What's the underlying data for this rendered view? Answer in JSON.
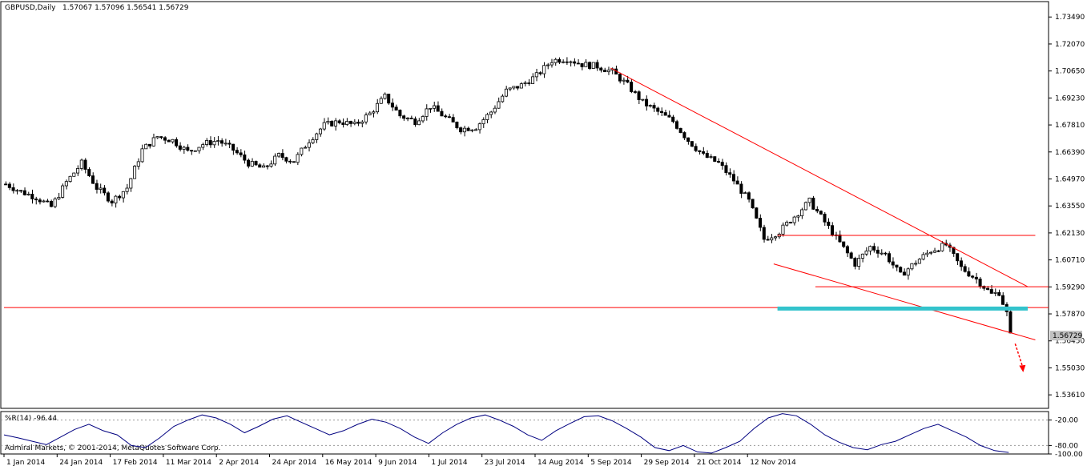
{
  "header": {
    "symbol": "GBPUSD,Daily",
    "ohlc": "1.57067 1.57096 1.56541 1.56729"
  },
  "indicator": {
    "label": "%R(14) -96.44",
    "axis_labels": [
      "-20.00",
      "-80.00",
      "-100.00"
    ]
  },
  "copyright": "Admiral Markets, © 2001-2014, MetaQuotes Software Corp.",
  "price_badge": "1.56729",
  "colors": {
    "bull": "#000000",
    "bear": "#000000",
    "trendline": "#ff0000",
    "support_band": "#33c3cc",
    "indicator_line": "#000080",
    "arrow": "#ff0000"
  },
  "chart_data": {
    "type": "candlestick",
    "symbol": "GBPUSD",
    "timeframe": "Daily",
    "y_ticks": [
      "1.73490",
      "1.72070",
      "1.70650",
      "1.69230",
      "1.67810",
      "1.66390",
      "1.64970",
      "1.63550",
      "1.62130",
      "1.60710",
      "1.59290",
      "1.57870",
      "1.56450",
      "1.55030",
      "1.53610"
    ],
    "x_ticks": [
      "1 Jan 2014",
      "24 Jan 2014",
      "17 Feb 2014",
      "11 Mar 2014",
      "2 Apr 2014",
      "24 Apr 2014",
      "16 May 2014",
      "9 Jun 2014",
      "1 Jul 2014",
      "23 Jul 2014",
      "14 Aug 2014",
      "5 Sep 2014",
      "29 Sep 2014",
      "21 Oct 2014",
      "12 Nov 2014"
    ],
    "ylim": [
      1.529,
      1.743
    ],
    "close_path": [
      [
        0,
        1.647
      ],
      [
        4,
        1.643
      ],
      [
        8,
        1.64
      ],
      [
        12,
        1.635
      ],
      [
        16,
        1.648
      ],
      [
        20,
        1.658
      ],
      [
        24,
        1.645
      ],
      [
        28,
        1.638
      ],
      [
        32,
        1.645
      ],
      [
        36,
        1.665
      ],
      [
        40,
        1.672
      ],
      [
        44,
        1.67
      ],
      [
        48,
        1.664
      ],
      [
        52,
        1.668
      ],
      [
        56,
        1.67
      ],
      [
        60,
        1.665
      ],
      [
        64,
        1.658
      ],
      [
        68,
        1.655
      ],
      [
        72,
        1.662
      ],
      [
        76,
        1.659
      ],
      [
        80,
        1.67
      ],
      [
        84,
        1.678
      ],
      [
        88,
        1.68
      ],
      [
        92,
        1.678
      ],
      [
        96,
        1.684
      ],
      [
        100,
        1.693
      ],
      [
        104,
        1.683
      ],
      [
        108,
        1.68
      ],
      [
        112,
        1.688
      ],
      [
        116,
        1.682
      ],
      [
        120,
        1.676
      ],
      [
        124,
        1.677
      ],
      [
        128,
        1.685
      ],
      [
        132,
        1.696
      ],
      [
        136,
        1.699
      ],
      [
        140,
        1.704
      ],
      [
        144,
        1.712
      ],
      [
        148,
        1.713
      ],
      [
        152,
        1.71
      ],
      [
        156,
        1.709
      ],
      [
        160,
        1.706
      ],
      [
        164,
        1.699
      ],
      [
        168,
        1.69
      ],
      [
        172,
        1.685
      ],
      [
        176,
        1.68
      ],
      [
        180,
        1.67
      ],
      [
        184,
        1.662
      ],
      [
        188,
        1.658
      ],
      [
        192,
        1.649
      ],
      [
        196,
        1.638
      ],
      [
        200,
        1.618
      ],
      [
        204,
        1.622
      ],
      [
        208,
        1.63
      ],
      [
        212,
        1.638
      ],
      [
        216,
        1.627
      ],
      [
        220,
        1.616
      ],
      [
        224,
        1.605
      ],
      [
        228,
        1.614
      ],
      [
        232,
        1.61
      ],
      [
        236,
        1.599
      ],
      [
        240,
        1.606
      ],
      [
        244,
        1.612
      ],
      [
        248,
        1.615
      ],
      [
        252,
        1.603
      ],
      [
        256,
        1.597
      ],
      [
        260,
        1.589
      ],
      [
        262,
        1.59
      ],
      [
        264,
        1.579
      ],
      [
        265,
        1.5673
      ]
    ],
    "trendlines": [
      {
        "from": [
          160,
          1.708
        ],
        "to": [
          270,
          1.593
        ]
      },
      {
        "from": [
          203,
          1.605
        ],
        "to": [
          272,
          1.565
        ]
      },
      {
        "from": [
          204,
          1.62
        ],
        "to": [
          272,
          1.62
        ]
      },
      {
        "from": [
          214,
          1.593
        ],
        "to": [
          276,
          1.593
        ]
      },
      {
        "from": [
          0,
          1.582
        ],
        "to": [
          285,
          1.582
        ]
      }
    ],
    "support_band": {
      "from_bar": 204,
      "to_bar": 270,
      "price": 1.5815
    },
    "williams_r": {
      "period": 14,
      "last": -96.44,
      "values": [
        -55,
        -62,
        -70,
        -78,
        -60,
        -42,
        -30,
        -45,
        -55,
        -80,
        -85,
        -62,
        -35,
        -20,
        -8,
        -15,
        -30,
        -50,
        -35,
        -18,
        -10,
        -25,
        -40,
        -55,
        -45,
        -30,
        -18,
        -25,
        -40,
        -60,
        -75,
        -50,
        -30,
        -15,
        -8,
        -20,
        -35,
        -55,
        -68,
        -45,
        -28,
        -12,
        -10,
        -22,
        -40,
        -60,
        -85,
        -92,
        -80,
        -95,
        -98,
        -85,
        -70,
        -40,
        -15,
        -5,
        -10,
        -30,
        -55,
        -72,
        -85,
        -90,
        -78,
        -70,
        -55,
        -40,
        -30,
        -45,
        -60,
        -80,
        -92,
        -96.44
      ]
    }
  }
}
